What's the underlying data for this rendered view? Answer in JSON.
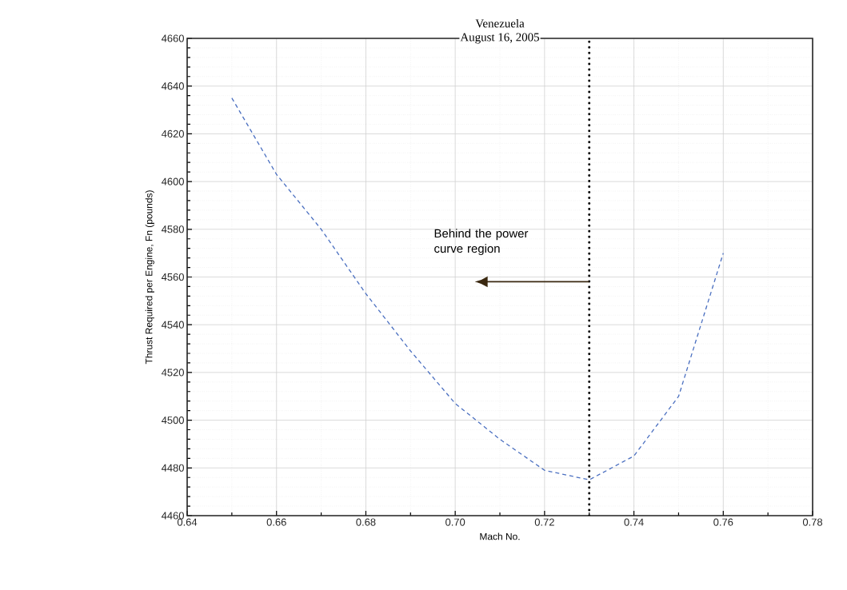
{
  "chart_data": {
    "type": "line",
    "title": "Venezuela",
    "subtitle": "August 16, 2005",
    "xlabel": "Mach No.",
    "ylabel": "Thrust Required per Engine, Fn (pounds)",
    "annotations": [
      "Behind the power curve region"
    ],
    "x": [
      0.65,
      0.66,
      0.67,
      0.68,
      0.69,
      0.7,
      0.71,
      0.72,
      0.73,
      0.74,
      0.75,
      0.76
    ],
    "series": [
      {
        "color": "#4a6fc0",
        "values": [
          4635,
          4603,
          4580,
          4553,
          4529,
          4507,
          4492,
          4479,
          4475,
          4485,
          4510,
          4570
        ]
      }
    ],
    "xlim": [
      0.64,
      0.78
    ],
    "ylim": [
      4460,
      4660
    ],
    "xticks": [
      0.64,
      0.66,
      0.68,
      {
        "value": 0.7,
        "label": "0.70"
      },
      0.72,
      0.74,
      0.76,
      0.78
    ],
    "yticks": [
      4460,
      4480,
      4500,
      4520,
      4540,
      4560,
      4580,
      4600,
      4620,
      4640,
      4660
    ],
    "ref_lines": [
      {
        "axis": "x",
        "value": 0.73,
        "color": "#000000",
        "line_style": "dotted"
      }
    ],
    "grid": true,
    "marker": "none",
    "line_style": "dashed"
  }
}
